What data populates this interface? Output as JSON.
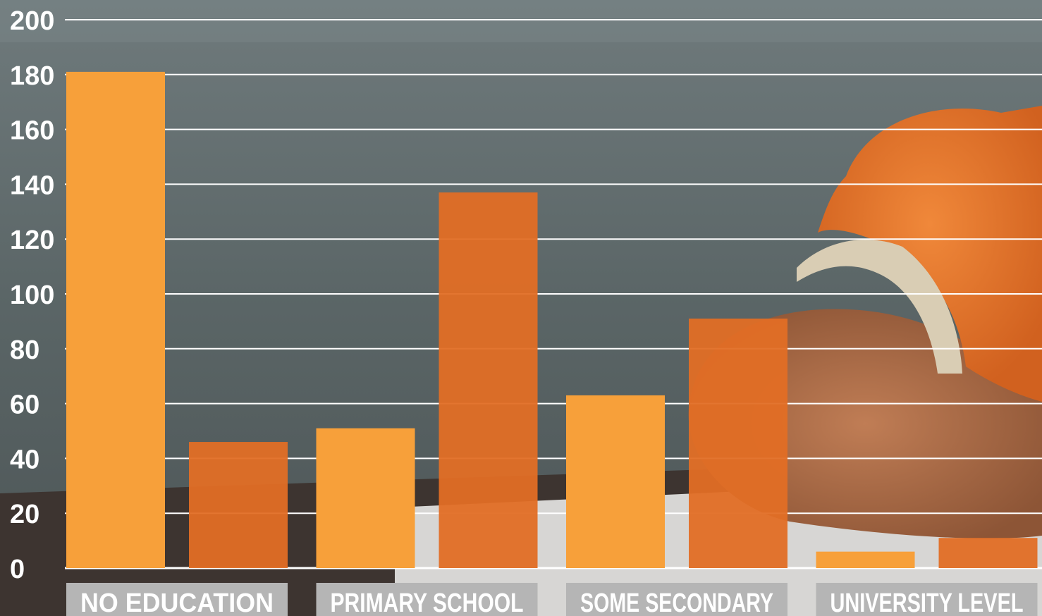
{
  "chart_data": {
    "type": "bar",
    "categories": [
      "NO EDUCATION",
      "PRIMARY SCHOOL",
      "SOME SECONDARY",
      "UNIVERSITY LEVEL"
    ],
    "series": [
      {
        "color": "#f7a03a",
        "values": [
          181,
          51,
          63,
          6
        ]
      },
      {
        "color": "#e26e25",
        "values": [
          46,
          137,
          91,
          11
        ]
      }
    ],
    "yticks": [
      0,
      20,
      40,
      60,
      80,
      100,
      120,
      140,
      160,
      180,
      200
    ],
    "ylim": [
      0,
      200
    ],
    "grid": true,
    "background": "photo of child writing at a desk"
  }
}
